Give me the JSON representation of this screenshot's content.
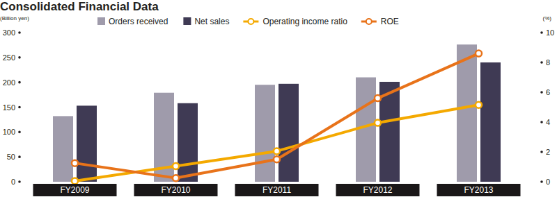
{
  "chart_data": {
    "type": "bar",
    "title": "Consolidated Financial Data",
    "ylabel": "(Billion yen)",
    "y2label": "(%)",
    "categories": [
      "FY2009",
      "FY2010",
      "FY2011",
      "FY2012",
      "FY2013"
    ],
    "series": [
      {
        "name": "Orders received",
        "type": "bar",
        "color": "#9f9bab",
        "values": [
          132,
          179,
          195,
          210,
          276
        ]
      },
      {
        "name": "Net sales",
        "type": "bar",
        "color": "#3f3a54",
        "values": [
          153,
          158,
          197,
          201,
          240
        ]
      },
      {
        "name": "Operating income ratio",
        "type": "line",
        "axis": "y2",
        "color": "#f4a900",
        "marker": "circle",
        "values": [
          0.05,
          1.05,
          2.05,
          3.95,
          5.15
        ]
      },
      {
        "name": "ROE",
        "type": "line",
        "axis": "y2",
        "color": "#e8731a",
        "marker": "circle",
        "values": [
          1.25,
          0.25,
          1.5,
          5.6,
          8.6
        ]
      }
    ],
    "ylim": [
      0,
      300
    ],
    "yticks": [
      0,
      50,
      100,
      150,
      200,
      250,
      300
    ],
    "y2lim": [
      0,
      10
    ],
    "y2ticks": [
      0,
      2,
      4,
      6,
      8,
      10
    ],
    "legend": "top",
    "grid": false
  }
}
